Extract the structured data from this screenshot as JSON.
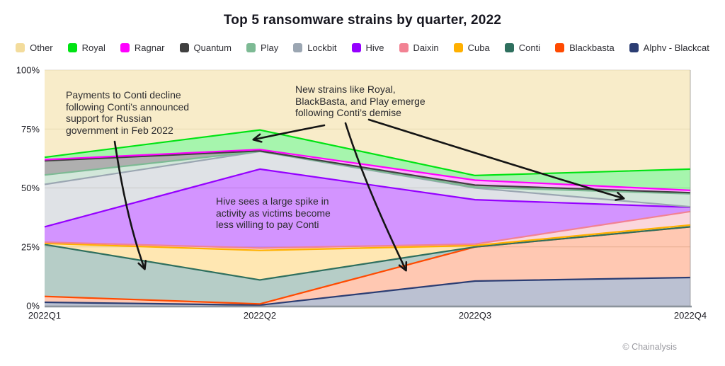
{
  "title": "Top 5 ransomware strains by quarter, 2022",
  "attribution": "© Chainalysis",
  "legend": [
    {
      "label": "Other",
      "color": "#F3DC9C"
    },
    {
      "label": "Royal",
      "color": "#00E313"
    },
    {
      "label": "Ragnar",
      "color": "#FF00FF"
    },
    {
      "label": "Quantum",
      "color": "#404040"
    },
    {
      "label": "Play",
      "color": "#7DBA94"
    },
    {
      "label": "Lockbit",
      "color": "#9BA6B2"
    },
    {
      "label": "Hive",
      "color": "#9500FF"
    },
    {
      "label": "Daixin",
      "color": "#F28293"
    },
    {
      "label": "Cuba",
      "color": "#FFB000"
    },
    {
      "label": "Conti",
      "color": "#2E6F5E"
    },
    {
      "label": "Blackbasta",
      "color": "#FF4A00"
    },
    {
      "label": "Alphv - Blackcat",
      "color": "#2B3D73"
    }
  ],
  "annotations": {
    "conti": {
      "text": "Payments to Conti decline\nfollowing Conti’s announced\nsupport for Russian\ngovernment in Feb 2022"
    },
    "new_strains": {
      "text": "New strains like Royal,\nBlackBasta, and Play emerge\nfollowing Conti’s demise"
    },
    "hive": {
      "text": "Hive sees a large spike in\nactivity as victims become\nless willing to pay Conti"
    }
  },
  "chart_data": {
    "type": "area",
    "stacked": true,
    "title": "Top 5 ransomware strains by quarter, 2022",
    "x": [
      "2022Q1",
      "2022Q2",
      "2022Q3",
      "2022Q4"
    ],
    "x_tick_labels": [
      "2022Q1",
      "2022Q2",
      "2022Q3",
      "2022Q4"
    ],
    "y_tick_labels": [
      "0%",
      "25%",
      "50%",
      "75%",
      "100%"
    ],
    "y_tick_values": [
      0,
      25,
      50,
      75,
      100
    ],
    "ylim": [
      0,
      100
    ],
    "unit": "percent of ransomware value by strain",
    "grid": true,
    "legend_position": "top",
    "series_note": "listed bottom of stack to top; values are percent per quarter",
    "series": [
      {
        "name": "Alphv - Blackcat",
        "color": "#2B3D73",
        "fill_alpha": 0.32,
        "values": [
          1.5,
          0.3,
          10.5,
          12.0
        ]
      },
      {
        "name": "Blackbasta",
        "color": "#FF4A00",
        "fill_alpha": 0.3,
        "values": [
          2.5,
          0.5,
          14.5,
          21.5
        ]
      },
      {
        "name": "Conti",
        "color": "#2E6F5E",
        "fill_alpha": 0.35,
        "values": [
          22.0,
          10.2,
          0.0,
          0.0
        ]
      },
      {
        "name": "Cuba",
        "color": "#FFB000",
        "fill_alpha": 0.3,
        "values": [
          0.5,
          12.5,
          0.6,
          0.8
        ]
      },
      {
        "name": "Daixin",
        "color": "#F28293",
        "fill_alpha": 0.32,
        "values": [
          0.5,
          1.0,
          0.6,
          5.7
        ]
      },
      {
        "name": "Hive",
        "color": "#9500FF",
        "fill_alpha": 0.42,
        "values": [
          6.5,
          33.5,
          18.8,
          1.8
        ]
      },
      {
        "name": "Lockbit",
        "color": "#9BA6B2",
        "fill_alpha": 0.32,
        "values": [
          18.0,
          7.5,
          5.0,
          0.2
        ]
      },
      {
        "name": "Play",
        "color": "#7DBA94",
        "fill_alpha": 0.35,
        "values": [
          4.0,
          0.1,
          0.3,
          5.5
        ]
      },
      {
        "name": "Quantum",
        "color": "#404040",
        "fill_alpha": 0.42,
        "values": [
          6.0,
          0.1,
          0.9,
          0.5
        ]
      },
      {
        "name": "Ragnar",
        "color": "#FF00FF",
        "fill_alpha": 0.3,
        "values": [
          0.5,
          0.6,
          2.1,
          1.0
        ]
      },
      {
        "name": "Royal",
        "color": "#00E313",
        "fill_alpha": 0.35,
        "values": [
          1.0,
          8.3,
          2.0,
          9.0
        ]
      },
      {
        "name": "Other",
        "color": "#F3DC9C",
        "fill_alpha": 0.55,
        "values": [
          37.0,
          25.4,
          44.7,
          42.0
        ]
      }
    ]
  }
}
